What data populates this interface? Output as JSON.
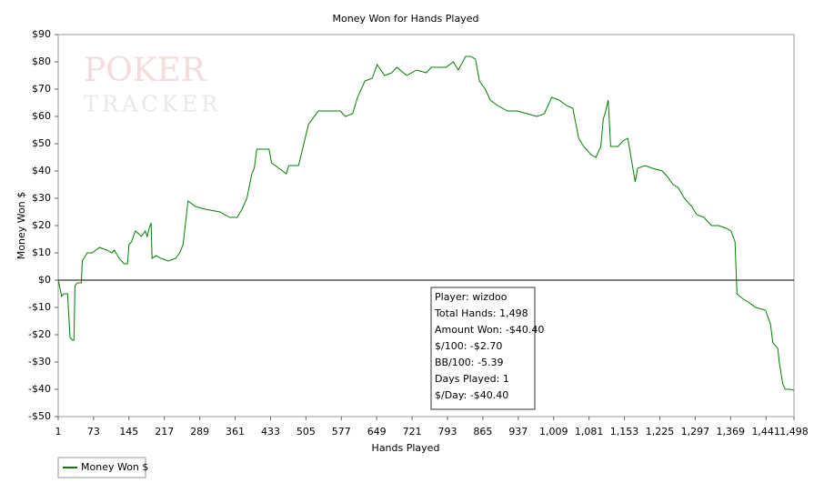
{
  "chart_data": {
    "type": "line",
    "title": "Money Won for Hands Played",
    "x_label": "Hands Played",
    "y_label": "Money Won $",
    "watermark": [
      "POKER",
      "TRACKER"
    ],
    "xlim": [
      1,
      1498
    ],
    "xticks": [
      1,
      73,
      145,
      217,
      289,
      361,
      433,
      505,
      577,
      649,
      721,
      793,
      865,
      937,
      {
        "value": 1009,
        "label": "1,009"
      },
      {
        "value": 1081,
        "label": "1,081"
      },
      {
        "value": 1153,
        "label": "1,153"
      },
      {
        "value": 1225,
        "label": "1,225"
      },
      {
        "value": 1297,
        "label": "1,297"
      },
      {
        "value": 1369,
        "label": "1,369"
      },
      {
        "value": 1441,
        "label": "1,441"
      },
      {
        "value": 1498,
        "label": "1,498"
      }
    ],
    "ylim": [
      -50,
      90
    ],
    "yticks": [
      {
        "value": -50,
        "label": "-$50"
      },
      {
        "value": -40,
        "label": "-$40"
      },
      {
        "value": -30,
        "label": "-$30"
      },
      {
        "value": -20,
        "label": "-$20"
      },
      {
        "value": -10,
        "label": "-$10"
      },
      {
        "value": 0,
        "label": "$0"
      },
      {
        "value": 10,
        "label": "$10"
      },
      {
        "value": 20,
        "label": "$20"
      },
      {
        "value": 30,
        "label": "$30"
      },
      {
        "value": 40,
        "label": "$40"
      },
      {
        "value": 50,
        "label": "$50"
      },
      {
        "value": 60,
        "label": "$60"
      },
      {
        "value": 70,
        "label": "$70"
      },
      {
        "value": 80,
        "label": "$80"
      },
      {
        "value": 90,
        "label": "$90"
      }
    ],
    "x": [
      1,
      8,
      12,
      20,
      25,
      30,
      33,
      35,
      40,
      48,
      50,
      60,
      70,
      85,
      100,
      110,
      115,
      125,
      135,
      142,
      145,
      150,
      158,
      165,
      170,
      178,
      182,
      186,
      190,
      192,
      200,
      210,
      225,
      240,
      248,
      255,
      265,
      280,
      300,
      330,
      350,
      365,
      375,
      385,
      395,
      400,
      405,
      425,
      430,
      435,
      450,
      465,
      470,
      490,
      510,
      530,
      555,
      575,
      585,
      600,
      610,
      625,
      640,
      650,
      665,
      680,
      690,
      710,
      730,
      750,
      760,
      790,
      805,
      815,
      830,
      840,
      850,
      858,
      870,
      880,
      895,
      915,
      935,
      955,
      975,
      990,
      1005,
      1020,
      1035,
      1048,
      1060,
      1070,
      1085,
      1095,
      1105,
      1110,
      1115,
      1120,
      1125,
      1140,
      1150,
      1160,
      1175,
      1180,
      1195,
      1210,
      1230,
      1240,
      1252,
      1262,
      1275,
      1290,
      1300,
      1315,
      1330,
      1345,
      1360,
      1370,
      1378,
      1382,
      1395,
      1405,
      1420,
      1440,
      1450,
      1455,
      1465,
      1468,
      1475,
      1480,
      1490,
      1498
    ],
    "series": [
      {
        "name": "Money Won $",
        "color": "#008000",
        "values": [
          0,
          -6,
          -5,
          -5,
          -21,
          -22,
          -22,
          -2,
          -1,
          -1,
          7,
          10,
          10,
          12,
          11,
          10,
          11,
          8,
          6,
          6,
          13,
          14,
          18,
          17,
          16,
          18,
          16,
          19,
          21,
          8,
          9,
          8,
          7,
          8,
          10,
          13,
          29,
          27,
          26,
          25,
          23,
          23,
          26,
          30,
          39,
          41,
          48,
          48,
          48,
          43,
          41,
          39,
          42,
          42,
          57,
          62,
          62,
          62,
          60,
          61,
          67,
          73,
          74,
          79,
          75,
          76,
          78,
          75,
          77,
          76,
          78,
          78,
          80,
          77,
          82,
          82,
          81,
          73,
          70,
          66,
          64,
          62,
          62,
          61,
          60,
          61,
          67,
          66,
          64,
          63,
          52,
          49,
          46,
          45,
          49,
          59,
          62,
          66,
          49,
          49,
          51,
          52,
          36,
          41,
          42,
          41,
          40,
          38,
          35,
          34,
          30,
          27,
          24,
          23,
          20,
          20,
          19,
          18,
          14,
          -5,
          -7,
          -8,
          -10,
          -11,
          -16,
          -23,
          -25,
          -30,
          -38,
          -40,
          -40,
          -40.4
        ]
      }
    ],
    "info_box": [
      "Player: wizdoo",
      "Total Hands: 1,498",
      "Amount Won: -$40.40",
      "$/100: -$2.70",
      "BB/100: -5.39",
      "Days Played: 1",
      "$/Day: -$40.40"
    ],
    "zero_line": true
  }
}
